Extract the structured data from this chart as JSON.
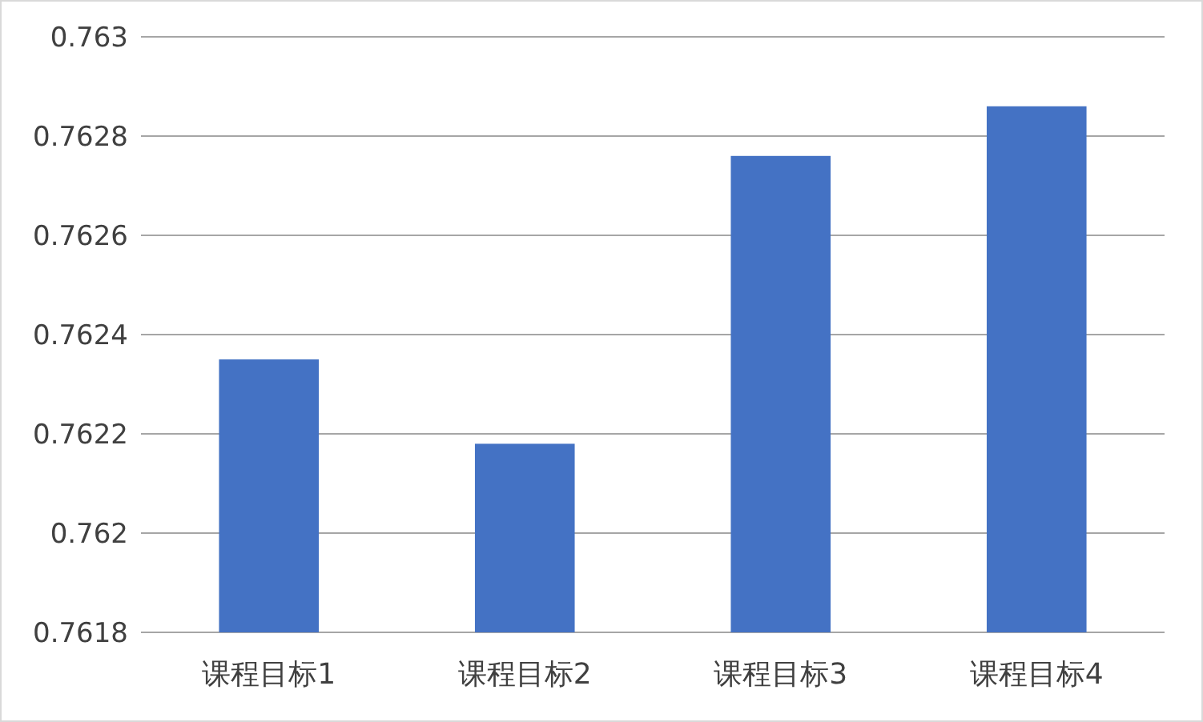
{
  "chart_data": {
    "type": "bar",
    "categories": [
      "课程目标1",
      "课程目标2",
      "课程目标3",
      "课程目标4"
    ],
    "values": [
      0.76235,
      0.76218,
      0.76276,
      0.76286
    ],
    "color": "#4472c4",
    "ylim": [
      0.7618,
      0.763
    ],
    "yticks": [
      0.7618,
      0.762,
      0.7622,
      0.7624,
      0.7626,
      0.7628,
      0.763
    ],
    "grid": "y"
  }
}
